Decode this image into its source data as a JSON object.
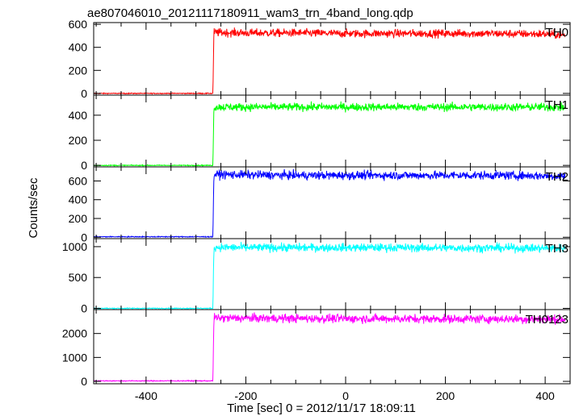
{
  "chart_data": {
    "type": "line",
    "title": "ae807046010_20121117180911_wam3_trn_4band_long.qdp",
    "xlabel": "Time [sec] 0 = 2012/11/17 18:09:11",
    "ylabel": "Counts/sec",
    "xlim": [
      -505,
      450
    ],
    "xticks": [
      -400,
      -200,
      0,
      200,
      400
    ],
    "grid": false,
    "onset_time": -265,
    "panels": [
      {
        "name": "TH0",
        "color": "#ff0000",
        "ylim": [
          -15,
          615
        ],
        "yticks": [
          0,
          200,
          400,
          600
        ],
        "x": [
          -505,
          -400,
          -300,
          -266,
          -264,
          -200,
          -100,
          0,
          100,
          200,
          300,
          400,
          440
        ],
        "y": [
          0,
          0,
          0,
          0,
          530,
          525,
          525,
          520,
          520,
          520,
          520,
          515,
          505
        ]
      },
      {
        "name": "TH1",
        "color": "#00ff00",
        "ylim": [
          -12,
          560
        ],
        "yticks": [
          0,
          200,
          400
        ],
        "x": [
          -505,
          -400,
          -300,
          -266,
          -264,
          -200,
          -100,
          0,
          100,
          200,
          300,
          400,
          440
        ],
        "y": [
          0,
          0,
          0,
          0,
          465,
          465,
          465,
          465,
          465,
          465,
          465,
          465,
          460
        ]
      },
      {
        "name": "TH2",
        "color": "#0000ff",
        "ylim": [
          -15,
          750
        ],
        "yticks": [
          0,
          200,
          400,
          600
        ],
        "x": [
          -505,
          -400,
          -300,
          -266,
          -264,
          -200,
          -100,
          0,
          100,
          200,
          300,
          400,
          440
        ],
        "y": [
          5,
          5,
          5,
          5,
          670,
          665,
          660,
          660,
          660,
          660,
          660,
          655,
          650
        ]
      },
      {
        "name": "TH3",
        "color": "#00ffff",
        "ylim": [
          -20,
          1130
        ],
        "yticks": [
          0,
          500,
          1000
        ],
        "x": [
          -505,
          -400,
          -300,
          -266,
          -264,
          -200,
          -100,
          0,
          100,
          200,
          300,
          400,
          440
        ],
        "y": [
          0,
          0,
          0,
          0,
          990,
          985,
          985,
          985,
          985,
          980,
          980,
          975,
          975
        ]
      },
      {
        "name": "TH0123",
        "color": "#ff00ff",
        "ylim": [
          -100,
          3000
        ],
        "yticks": [
          0,
          1000,
          2000
        ],
        "x": [
          -505,
          -400,
          -300,
          -266,
          -264,
          -200,
          -100,
          0,
          100,
          200,
          300,
          400,
          440
        ],
        "y": [
          20,
          20,
          20,
          20,
          2650,
          2640,
          2630,
          2620,
          2620,
          2610,
          2610,
          2600,
          2590
        ]
      }
    ]
  }
}
